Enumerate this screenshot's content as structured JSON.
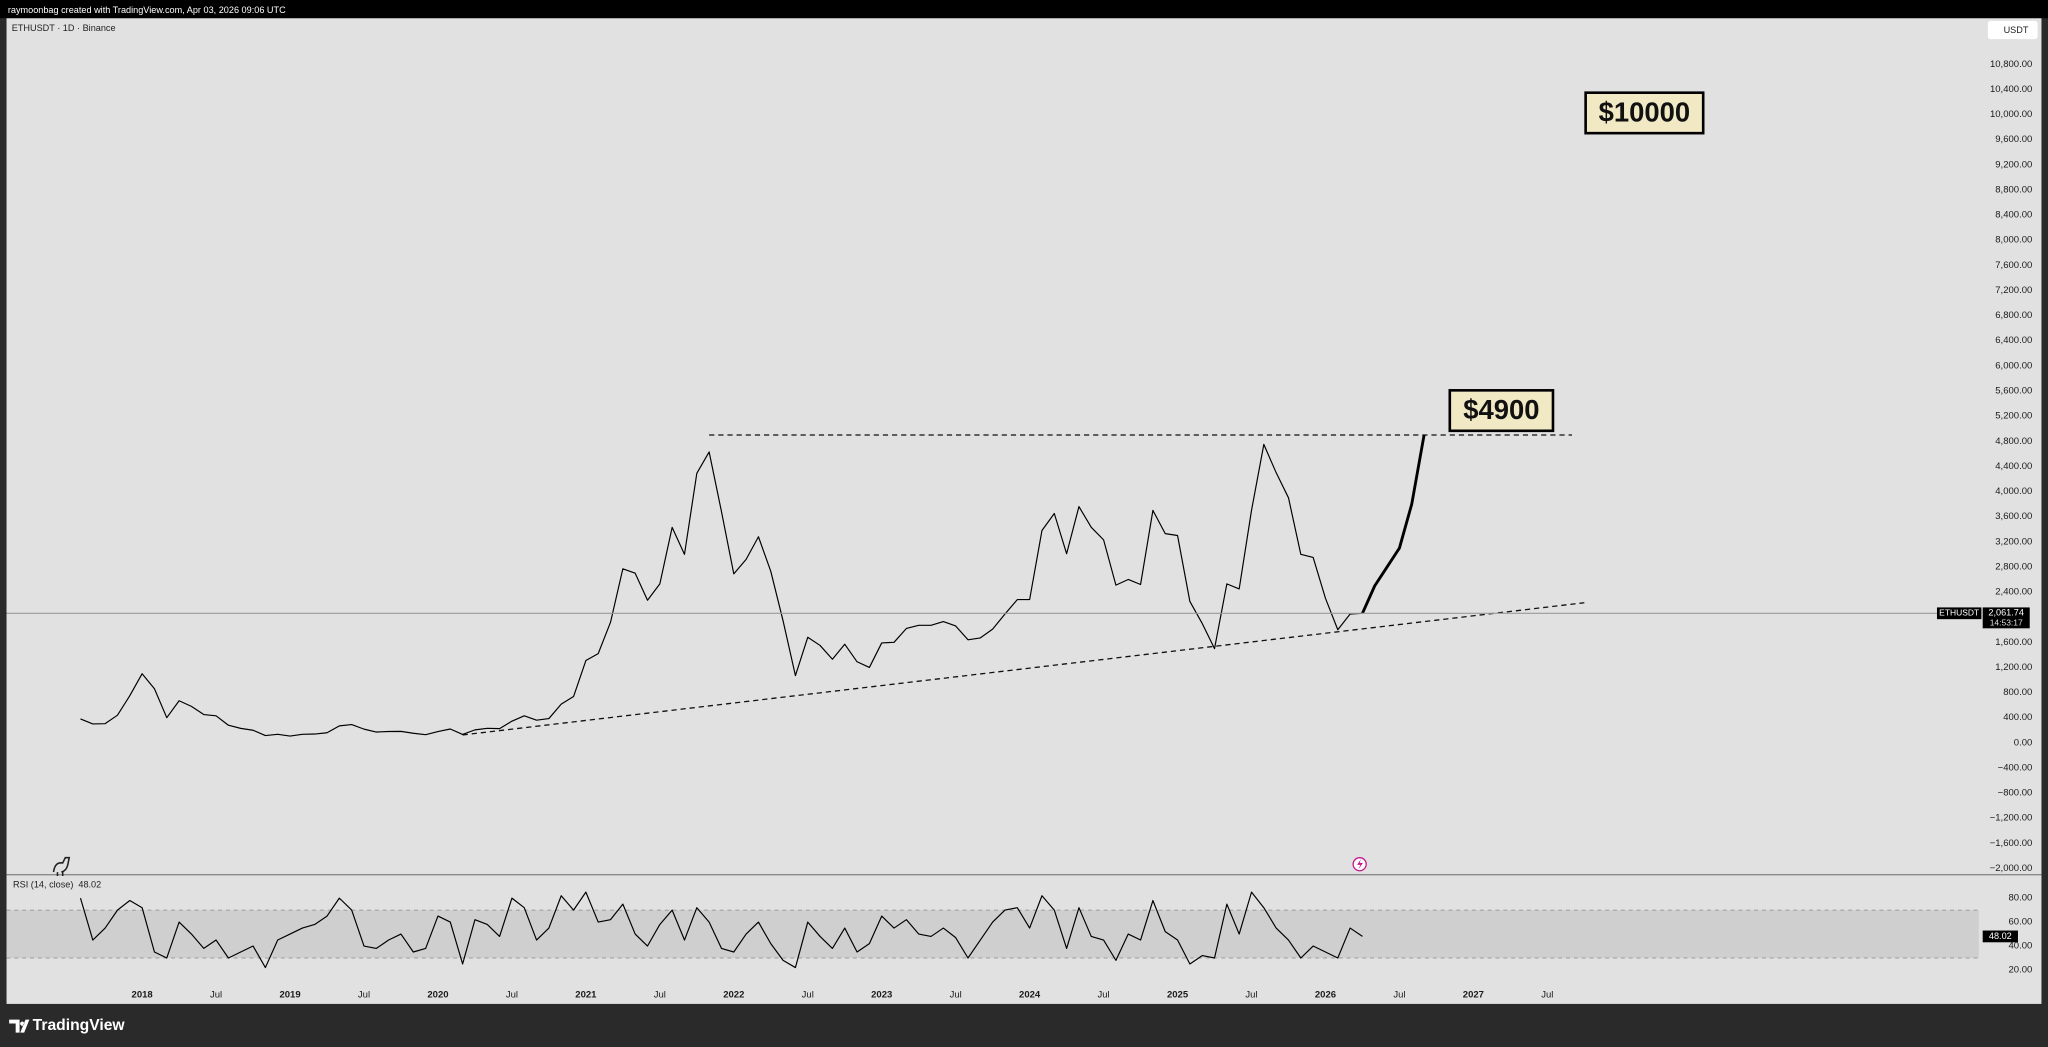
{
  "header": "raymoonbag created with TradingView.com, Apr 03, 2026 09:06 UTC",
  "footer": "TradingView",
  "chart_data": [
    {
      "type": "line",
      "title": "ETHUSDT · 1D · Binance",
      "currency": "USDT",
      "last_symbol": "ETHUSDT",
      "countdown": "14:53:17",
      "grid": false,
      "annotations": [
        "$10000",
        "$4900"
      ],
      "x": [
        "2017-08",
        "2017-09",
        "2017-10",
        "2017-11",
        "2017-12",
        "2018-01",
        "2018-02",
        "2018-03",
        "2018-04",
        "2018-05",
        "2018-06",
        "2018-07",
        "2018-08",
        "2018-09",
        "2018-10",
        "2018-11",
        "2018-12",
        "2019-01",
        "2019-02",
        "2019-03",
        "2019-04",
        "2019-05",
        "2019-06",
        "2019-07",
        "2019-08",
        "2019-09",
        "2019-10",
        "2019-11",
        "2019-12",
        "2020-01",
        "2020-02",
        "2020-03",
        "2020-04",
        "2020-05",
        "2020-06",
        "2020-07",
        "2020-08",
        "2020-09",
        "2020-10",
        "2020-11",
        "2020-12",
        "2021-01",
        "2021-02",
        "2021-03",
        "2021-04",
        "2021-05",
        "2021-06",
        "2021-07",
        "2021-08",
        "2021-09",
        "2021-10",
        "2021-11",
        "2021-12",
        "2022-01",
        "2022-02",
        "2022-03",
        "2022-04",
        "2022-05",
        "2022-06",
        "2022-07",
        "2022-08",
        "2022-09",
        "2022-10",
        "2022-11",
        "2022-12",
        "2023-01",
        "2023-02",
        "2023-03",
        "2023-04",
        "2023-05",
        "2023-06",
        "2023-07",
        "2023-08",
        "2023-09",
        "2023-10",
        "2023-11",
        "2023-12",
        "2024-01",
        "2024-02",
        "2024-03",
        "2024-04",
        "2024-05",
        "2024-06",
        "2024-07",
        "2024-08",
        "2024-09",
        "2024-10",
        "2024-11",
        "2024-12",
        "2025-01",
        "2025-02",
        "2025-03",
        "2025-04",
        "2025-05",
        "2025-06",
        "2025-07",
        "2025-08",
        "2025-09",
        "2025-10",
        "2025-11",
        "2025-12",
        "2026-01",
        "2026-02",
        "2026-03",
        "2026-04",
        "2026-05",
        "2026-06",
        "2026-07",
        "2026-08",
        "2026-09"
      ],
      "series": [
        {
          "color": "#000000",
          "values": [
            380,
            300,
            305,
            440,
            750,
            1100,
            860,
            400,
            670,
            580,
            450,
            430,
            280,
            230,
            200,
            115,
            135,
            107,
            135,
            140,
            160,
            270,
            290,
            218,
            172,
            180,
            182,
            152,
            130,
            180,
            220,
            133,
            206,
            231,
            226,
            345,
            430,
            360,
            386,
            615,
            737,
            1310,
            1420,
            1920,
            2770,
            2700,
            2270,
            2530,
            3430,
            3000,
            4290,
            4630,
            3680,
            2690,
            2920,
            3280,
            2730,
            1940,
            1070,
            1680,
            1550,
            1330,
            1570,
            1290,
            1200,
            1590,
            1600,
            1820,
            1870,
            1870,
            1930,
            1860,
            1640,
            1670,
            1810,
            2050,
            2280,
            2280,
            3380,
            3650,
            3010,
            3760,
            3430,
            3230,
            2510,
            2600,
            2520,
            3700,
            3330,
            3300,
            2250,
            1900,
            1500,
            2530,
            2450,
            3700,
            4750,
            4300,
            3900,
            3000,
            2950,
            2300,
            1800,
            2050,
            2061.74,
            null,
            null,
            null,
            null,
            null
          ],
          "value_labels": [
            null,
            null,
            null,
            null,
            null,
            null,
            null,
            null,
            null,
            null,
            null,
            null,
            null,
            null,
            null,
            null,
            null,
            null,
            null,
            null,
            null,
            null,
            null,
            null,
            null,
            null,
            null,
            null,
            null,
            null,
            null,
            null,
            null,
            null,
            null,
            null,
            null,
            null,
            null,
            null,
            null,
            null,
            null,
            null,
            null,
            null,
            null,
            null,
            null,
            null,
            null,
            null,
            null,
            null,
            null,
            null,
            null,
            null,
            null,
            null,
            null,
            null,
            null,
            null,
            null,
            null,
            null,
            null,
            null,
            null,
            null,
            null,
            null,
            null,
            null,
            null,
            null,
            null,
            null,
            null,
            null,
            null,
            null,
            null,
            null,
            null,
            null,
            null,
            null,
            null,
            null,
            null,
            null,
            null,
            null,
            null,
            null,
            null,
            null,
            null,
            null,
            null,
            null,
            null,
            "2,061.74",
            null,
            null,
            null,
            null,
            null
          ]
        },
        {
          "color": "#000000",
          "values": [
            null,
            null,
            null,
            null,
            null,
            null,
            null,
            null,
            null,
            null,
            null,
            null,
            null,
            null,
            null,
            null,
            null,
            null,
            null,
            null,
            null,
            null,
            null,
            null,
            null,
            null,
            null,
            null,
            null,
            null,
            null,
            null,
            null,
            null,
            null,
            null,
            null,
            null,
            null,
            null,
            null,
            null,
            null,
            null,
            null,
            null,
            null,
            null,
            null,
            null,
            null,
            null,
            null,
            null,
            null,
            null,
            null,
            null,
            null,
            null,
            null,
            null,
            null,
            null,
            null,
            null,
            null,
            null,
            null,
            null,
            null,
            null,
            null,
            null,
            null,
            null,
            null,
            null,
            null,
            null,
            null,
            null,
            null,
            null,
            null,
            null,
            null,
            null,
            null,
            null,
            null,
            null,
            null,
            null,
            null,
            null,
            null,
            null,
            null,
            null,
            null,
            null,
            null,
            null,
            2061.74,
            2500,
            2800,
            3100,
            3800,
            4900
          ]
        }
      ],
      "trendlines": [
        {
          "x": [
            "2021-11",
            "2027-09"
          ],
          "values": [
            4900,
            4900
          ]
        },
        {
          "x": [
            "2020-03",
            "2027-10"
          ],
          "values": [
            125,
            2230
          ]
        }
      ],
      "xlim": [
        "2017-02",
        "2030-06"
      ],
      "xticks": [
        {
          "value": "2018-01",
          "label": "2018"
        },
        {
          "value": "2018-07",
          "label": "Jul"
        },
        {
          "value": "2019-01",
          "label": "2019"
        },
        {
          "value": "2019-07",
          "label": "Jul"
        },
        {
          "value": "2020-01",
          "label": "2020"
        },
        {
          "value": "2020-07",
          "label": "Jul"
        },
        {
          "value": "2021-01",
          "label": "2021"
        },
        {
          "value": "2021-07",
          "label": "Jul"
        },
        {
          "value": "2022-01",
          "label": "2022"
        },
        {
          "value": "2022-07",
          "label": "Jul"
        },
        {
          "value": "2023-01",
          "label": "2023"
        },
        {
          "value": "2023-07",
          "label": "Jul"
        },
        {
          "value": "2024-01",
          "label": "2024"
        },
        {
          "value": "2024-07",
          "label": "Jul"
        },
        {
          "value": "2025-01",
          "label": "2025"
        },
        {
          "value": "2025-07",
          "label": "Jul"
        },
        {
          "value": "2026-01",
          "label": "2026"
        },
        {
          "value": "2026-07",
          "label": "Jul"
        },
        {
          "value": "2027-01",
          "label": "2027"
        },
        {
          "value": "2027-07",
          "label": "Jul"
        }
      ],
      "ylim": [
        -2078,
        11512
      ],
      "yticks": [
        {
          "value": -2000,
          "label": "−2,000.00"
        },
        {
          "value": -1600,
          "label": "−1,600.00"
        },
        {
          "value": -1200,
          "label": "−1,200.00"
        },
        {
          "value": -800,
          "label": "−800.00"
        },
        {
          "value": -400,
          "label": "−400.00"
        },
        {
          "value": 0,
          "label": "0.00"
        },
        {
          "value": 400,
          "label": "400.00"
        },
        {
          "value": 800,
          "label": "800.00"
        },
        {
          "value": 1200,
          "label": "1,200.00"
        },
        {
          "value": 1600,
          "label": "1,600.00"
        },
        {
          "value": 2400,
          "label": "2,400.00"
        },
        {
          "value": 2800,
          "label": "2,800.00"
        },
        {
          "value": 3200,
          "label": "3,200.00"
        },
        {
          "value": 3600,
          "label": "3,600.00"
        },
        {
          "value": 4000,
          "label": "4,000.00"
        },
        {
          "value": 4400,
          "label": "4,400.00"
        },
        {
          "value": 4800,
          "label": "4,800.00"
        },
        {
          "value": 5200,
          "label": "5,200.00"
        },
        {
          "value": 5600,
          "label": "5,600.00"
        },
        {
          "value": 6000,
          "label": "6,000.00"
        },
        {
          "value": 6400,
          "label": "6,400.00"
        },
        {
          "value": 6800,
          "label": "6,800.00"
        },
        {
          "value": 7200,
          "label": "7,200.00"
        },
        {
          "value": 7600,
          "label": "7,600.00"
        },
        {
          "value": 8000,
          "label": "8,000.00"
        },
        {
          "value": 8400,
          "label": "8,400.00"
        },
        {
          "value": 8800,
          "label": "8,800.00"
        },
        {
          "value": 9200,
          "label": "9,200.00"
        },
        {
          "value": 9600,
          "label": "9,600.00"
        },
        {
          "value": 10000,
          "label": "10,000.00"
        },
        {
          "value": 10400,
          "label": "10,400.00"
        },
        {
          "value": 10800,
          "label": "10,800.00"
        }
      ]
    },
    {
      "type": "line",
      "title": "RSI (14, close)",
      "band": [
        30,
        70
      ],
      "x": [
        "2017-08",
        "2017-09",
        "2017-10",
        "2017-11",
        "2017-12",
        "2018-01",
        "2018-02",
        "2018-03",
        "2018-04",
        "2018-05",
        "2018-06",
        "2018-07",
        "2018-08",
        "2018-09",
        "2018-10",
        "2018-11",
        "2018-12",
        "2019-01",
        "2019-02",
        "2019-03",
        "2019-04",
        "2019-05",
        "2019-06",
        "2019-07",
        "2019-08",
        "2019-09",
        "2019-10",
        "2019-11",
        "2019-12",
        "2020-01",
        "2020-02",
        "2020-03",
        "2020-04",
        "2020-05",
        "2020-06",
        "2020-07",
        "2020-08",
        "2020-09",
        "2020-10",
        "2020-11",
        "2020-12",
        "2021-01",
        "2021-02",
        "2021-03",
        "2021-04",
        "2021-05",
        "2021-06",
        "2021-07",
        "2021-08",
        "2021-09",
        "2021-10",
        "2021-11",
        "2021-12",
        "2022-01",
        "2022-02",
        "2022-03",
        "2022-04",
        "2022-05",
        "2022-06",
        "2022-07",
        "2022-08",
        "2022-09",
        "2022-10",
        "2022-11",
        "2022-12",
        "2023-01",
        "2023-02",
        "2023-03",
        "2023-04",
        "2023-05",
        "2023-06",
        "2023-07",
        "2023-08",
        "2023-09",
        "2023-10",
        "2023-11",
        "2023-12",
        "2024-01",
        "2024-02",
        "2024-03",
        "2024-04",
        "2024-05",
        "2024-06",
        "2024-07",
        "2024-08",
        "2024-09",
        "2024-10",
        "2024-11",
        "2024-12",
        "2025-01",
        "2025-02",
        "2025-03",
        "2025-04",
        "2025-05",
        "2025-06",
        "2025-07",
        "2025-08",
        "2025-09",
        "2025-10",
        "2025-11",
        "2025-12",
        "2026-01",
        "2026-02",
        "2026-03",
        "2026-04"
      ],
      "series": [
        {
          "color": "#000000",
          "values": [
            80,
            45,
            55,
            70,
            78,
            72,
            35,
            30,
            60,
            50,
            38,
            45,
            30,
            35,
            40,
            22,
            45,
            50,
            55,
            58,
            65,
            80,
            70,
            40,
            38,
            45,
            50,
            35,
            38,
            65,
            60,
            25,
            62,
            58,
            48,
            80,
            72,
            45,
            55,
            82,
            70,
            85,
            60,
            62,
            75,
            50,
            40,
            58,
            70,
            45,
            72,
            60,
            38,
            35,
            50,
            60,
            42,
            28,
            22,
            60,
            48,
            38,
            55,
            35,
            42,
            65,
            55,
            62,
            50,
            48,
            55,
            47,
            30,
            45,
            60,
            70,
            72,
            55,
            82,
            70,
            38,
            72,
            48,
            45,
            28,
            50,
            45,
            78,
            52,
            45,
            25,
            32,
            30,
            75,
            50,
            85,
            72,
            55,
            45,
            30,
            40,
            35,
            30,
            55,
            48.02
          ]
        }
      ],
      "xlim": [
        "2017-02",
        "2030-06"
      ],
      "ylim": [
        6.9,
        98.5
      ],
      "yticks": [
        {
          "value": 20,
          "label": "20.00"
        },
        {
          "value": 40,
          "label": "40.00"
        },
        {
          "value": 60,
          "label": "60.00"
        },
        {
          "value": 80,
          "label": "80.00"
        }
      ]
    }
  ]
}
